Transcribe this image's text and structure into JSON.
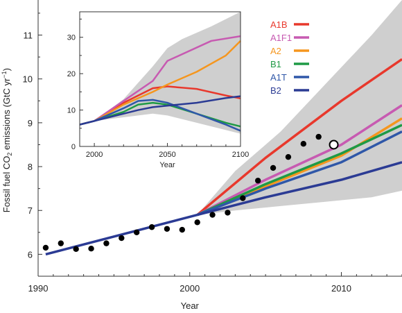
{
  "chart_data": [
    {
      "type": "line",
      "title": "",
      "xlabel": "Year",
      "ylabel": "Fossil fuel CO",
      "ylabel_sub": "2",
      "ylabel_tail": " emissions (GtC yr",
      "ylabel_sup": "−1",
      "ylabel_end": ")",
      "xlim": [
        1990,
        2014
      ],
      "ylim": [
        5.5,
        11.8
      ],
      "xticks": [
        "1990",
        "2000",
        "2010"
      ],
      "yticks": [
        "6",
        "7",
        "8",
        "9",
        "10",
        "11"
      ],
      "uncertainty_band": {
        "color": "#cfcfcf",
        "x": [
          2000.5,
          2003,
          2006,
          2009,
          2012,
          2014
        ],
        "lower": [
          6.9,
          7.0,
          7.1,
          7.2,
          7.3,
          7.45
        ],
        "upper": [
          6.9,
          7.9,
          8.8,
          9.9,
          11.0,
          11.8
        ]
      },
      "historical_line": {
        "name": "",
        "color": "#2b3b94",
        "x": [
          1990.5,
          2000.5
        ],
        "y": [
          6.0,
          6.9
        ]
      },
      "series": [
        {
          "name": "A1B",
          "color": "#e8382c",
          "x": [
            2000.5,
            2005,
            2010,
            2014
          ],
          "y": [
            6.9,
            8.2,
            9.5,
            10.45
          ]
        },
        {
          "name": "A1F1",
          "color": "#c75ab1",
          "x": [
            2000.5,
            2005,
            2010,
            2014
          ],
          "y": [
            6.9,
            7.7,
            8.5,
            9.4
          ]
        },
        {
          "name": "A2",
          "color": "#f5961e",
          "x": [
            2000.5,
            2005,
            2010,
            2014
          ],
          "y": [
            6.9,
            7.55,
            8.25,
            9.1
          ]
        },
        {
          "name": "B1",
          "color": "#1f9a45",
          "x": [
            2000.5,
            2005,
            2010,
            2014
          ],
          "y": [
            6.9,
            7.6,
            8.3,
            8.95
          ]
        },
        {
          "name": "A1T",
          "color": "#2f57a8",
          "x": [
            2000.5,
            2005,
            2010,
            2014
          ],
          "y": [
            6.9,
            7.5,
            8.1,
            8.8
          ]
        },
        {
          "name": "B2",
          "color": "#2b3b94",
          "x": [
            2000.5,
            2005,
            2010,
            2014
          ],
          "y": [
            6.9,
            7.3,
            7.7,
            8.1
          ]
        }
      ],
      "observations": {
        "color": "#000000",
        "x": [
          1990.5,
          1991.5,
          1992.5,
          1993.5,
          1994.5,
          1995.5,
          1996.5,
          1997.5,
          1998.5,
          1999.5,
          2000.5,
          2001.5,
          2002.5,
          2003.5,
          2004.5,
          2005.5,
          2006.5,
          2007.5,
          2008.5
        ],
        "y": [
          6.15,
          6.25,
          6.12,
          6.13,
          6.25,
          6.37,
          6.5,
          6.62,
          6.58,
          6.56,
          6.73,
          6.9,
          6.95,
          7.28,
          7.68,
          7.97,
          8.22,
          8.52,
          8.68
        ]
      },
      "estimate_point": {
        "x": 2009.5,
        "y": 8.5
      }
    },
    {
      "type": "line",
      "title": "",
      "xlabel": "Year",
      "ylabel": "",
      "xlim": [
        1990,
        2100
      ],
      "ylim": [
        0,
        37
      ],
      "xticks": [
        "2000",
        "2050",
        "2100"
      ],
      "yticks": [
        "0",
        "10",
        "20",
        "30"
      ],
      "uncertainty_band": {
        "color": "#cfcfcf",
        "x": [
          1990,
          2000,
          2020,
          2040,
          2050,
          2060,
          2080,
          2100
        ],
        "lower": [
          6.0,
          7.0,
          8.0,
          9.0,
          8.5,
          7.5,
          5.5,
          3.5
        ],
        "upper": [
          6.0,
          7.0,
          13.0,
          22.0,
          27.0,
          29.5,
          33.0,
          37.0
        ]
      },
      "series": [
        {
          "name": "A1B",
          "color": "#e8382c",
          "x": [
            1990,
            2000,
            2020,
            2040,
            2050,
            2070,
            2090,
            2100
          ],
          "y": [
            6.0,
            7.0,
            12.0,
            16.0,
            16.5,
            15.8,
            14.0,
            13.2
          ]
        },
        {
          "name": "A1F1",
          "color": "#c75ab1",
          "x": [
            1990,
            2000,
            2020,
            2040,
            2050,
            2080,
            2100
          ],
          "y": [
            6.0,
            7.0,
            12.5,
            18.0,
            23.5,
            29.0,
            30.3
          ]
        },
        {
          "name": "A2",
          "color": "#f5961e",
          "x": [
            1990,
            2000,
            2020,
            2040,
            2050,
            2070,
            2090,
            2100
          ],
          "y": [
            6.0,
            7.0,
            11.5,
            15.0,
            17.0,
            20.5,
            25.0,
            29.0
          ]
        },
        {
          "name": "B1",
          "color": "#1f9a45",
          "x": [
            1990,
            2000,
            2020,
            2030,
            2040,
            2050,
            2070,
            2090,
            2100
          ],
          "y": [
            6.0,
            7.0,
            9.5,
            11.5,
            12.0,
            11.5,
            9.0,
            6.5,
            5.5
          ]
        },
        {
          "name": "A1T",
          "color": "#2f57a8",
          "x": [
            1990,
            2000,
            2020,
            2030,
            2040,
            2050,
            2070,
            2090,
            2100
          ],
          "y": [
            6.0,
            7.0,
            10.5,
            12.5,
            12.8,
            12.0,
            9.0,
            6.0,
            4.3
          ]
        },
        {
          "name": "B2",
          "color": "#2b3b94",
          "x": [
            1990,
            2000,
            2020,
            2030,
            2040,
            2050,
            2070,
            2090,
            2100
          ],
          "y": [
            6.0,
            7.0,
            9.0,
            10.0,
            10.8,
            11.2,
            12.0,
            13.3,
            13.8
          ]
        }
      ]
    }
  ]
}
